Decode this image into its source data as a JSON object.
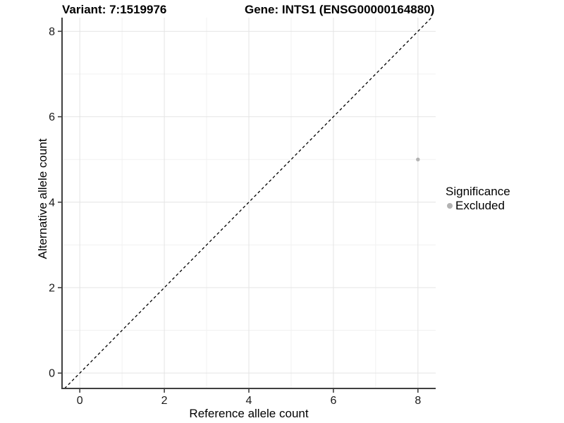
{
  "titles": {
    "variant": "Variant: 7:1519976",
    "gene": "Gene: INTS1 (ENSG00000164880)"
  },
  "chart_data": {
    "type": "scatter",
    "title_left": "Variant: 7:1519976",
    "title_right": "Gene: INTS1 (ENSG00000164880)",
    "xlabel": "Reference allele count",
    "ylabel": "Alternative allele count",
    "xlim": [
      -0.42,
      8.42
    ],
    "ylim": [
      -0.36,
      8.32
    ],
    "x_ticks": [
      0,
      2,
      4,
      6,
      8
    ],
    "y_ticks": [
      0,
      2,
      4,
      6,
      8
    ],
    "x_minor_ticks": [
      1,
      3,
      5,
      7
    ],
    "y_minor_ticks": [
      1,
      3,
      5,
      7
    ],
    "grid": true,
    "legend_position": "right",
    "series": [
      {
        "name": "Excluded",
        "color": "#b3b3b3",
        "points": [
          {
            "x": 8,
            "y": 5
          }
        ]
      }
    ],
    "reference_line": {
      "type": "identity",
      "slope": 1,
      "intercept": 0,
      "style": "dashed",
      "color": "#000000"
    },
    "legend": {
      "title": "Significance",
      "items": [
        {
          "label": "Excluded",
          "color": "#b3b3b3"
        }
      ]
    }
  },
  "colors": {
    "background": "#ffffff",
    "grid_major": "#e4e4e4",
    "grid_minor": "#f1f1f1",
    "axis_line": "#404040",
    "tick_mark": "#333333",
    "tick_label": "#1a1a1a",
    "point": "#b3b3b3",
    "dashed_line": "#000000"
  }
}
